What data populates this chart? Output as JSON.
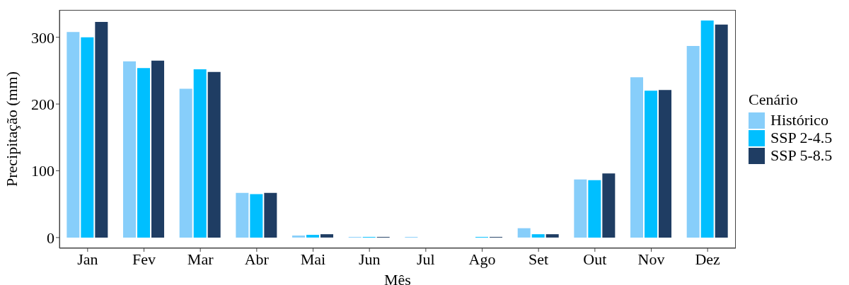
{
  "chart_data": {
    "type": "bar",
    "xlabel": "Mês",
    "ylabel": "Precipitação (mm)",
    "legend_title": "Cenário",
    "legend": "right",
    "grid": false,
    "categories": [
      "Jan",
      "Fev",
      "Mar",
      "Abr",
      "Mai",
      "Jun",
      "Jul",
      "Ago",
      "Set",
      "Out",
      "Nov",
      "Dez"
    ],
    "ylim": [
      -16,
      341
    ],
    "yticks": [
      0,
      100,
      200,
      300
    ],
    "series": [
      {
        "name": "Histórico",
        "color": "#87cefa",
        "values": [
          308,
          264,
          223,
          67,
          3,
          1,
          1,
          0,
          14,
          87,
          240,
          287
        ]
      },
      {
        "name": "SSP 2-4.5",
        "color": "#00bfff",
        "values": [
          300,
          254,
          252,
          65,
          4,
          1,
          0,
          1,
          5,
          86,
          220,
          325
        ]
      },
      {
        "name": "SSP 5-8.5",
        "color": "#1f3d63",
        "values": [
          323,
          265,
          248,
          67,
          5,
          1,
          0,
          1,
          5,
          96,
          221,
          319
        ]
      }
    ]
  }
}
